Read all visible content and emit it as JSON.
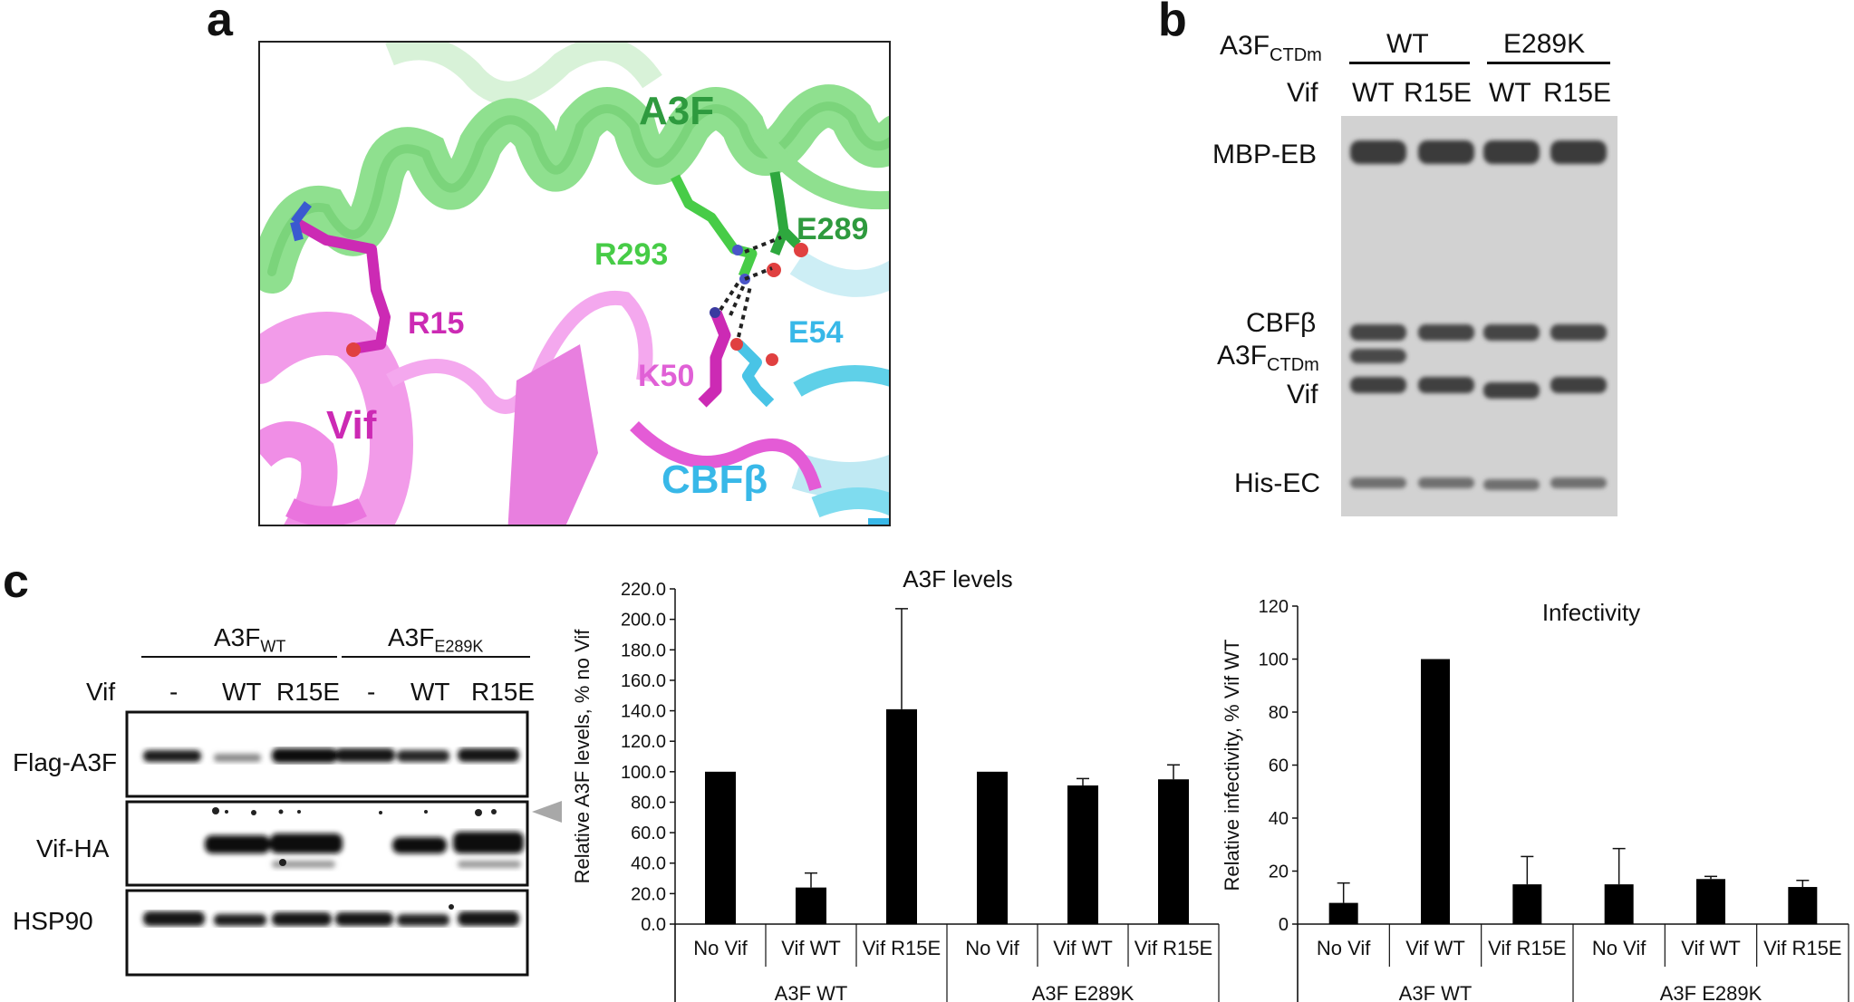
{
  "panels": {
    "a": {
      "label": "a",
      "labels": {
        "a3f": "A3F",
        "r293": "R293",
        "e289": "E289",
        "r15": "R15",
        "e54": "E54",
        "k50": "K50",
        "vif": "Vif",
        "cbfb": "CBFβ"
      },
      "colors": {
        "a3f_green": "#2e9a3e",
        "a3f_light": "#8fe08f",
        "vif_magenta": "#cc2ab4",
        "vif_light": "#f08ee6",
        "cbfb_cyan": "#38b8e8",
        "r293_green": "#47cc47"
      }
    },
    "b": {
      "label": "b",
      "row1_prefix": "A3F",
      "row1_sub": "CTDm",
      "group1": "WT",
      "group2": "E289K",
      "row2_prefix": "Vif",
      "lanes": [
        "WT",
        "R15E",
        "WT",
        "R15E"
      ],
      "bands": {
        "mbp": "MBP-EB",
        "cbfb": "CBFβ",
        "a3f_main": "A3F",
        "a3f_sub": "CTDm",
        "vif": "Vif",
        "his": "His-EC"
      }
    },
    "c": {
      "label": "c",
      "group1_main": "A3F",
      "group1_sub": "WT",
      "group2_main": "A3F",
      "group2_sub": "E289K",
      "vif_label": "Vif",
      "lanes": [
        "-",
        "WT",
        "R15E",
        "-",
        "WT",
        "R15E"
      ],
      "blots": [
        "Flag-A3F",
        "Vif-HA",
        "HSP90"
      ]
    }
  },
  "chart_data": [
    {
      "type": "bar",
      "title": "A3F levels",
      "ylabel": "Relative A3F levels, % no Vif",
      "ylim": [
        0,
        220
      ],
      "ytick_step": 20,
      "ytick_decimals": 1,
      "categories": [
        "No Vif",
        "Vif WT",
        "Vif R15E",
        "No Vif",
        "Vif WT",
        "Vif R15E"
      ],
      "groups": [
        "A3F WT",
        "A3F E289K"
      ],
      "values": [
        100,
        24,
        141,
        100,
        91,
        95
      ],
      "errors": [
        0,
        9.5,
        66,
        0,
        4.5,
        9.5
      ],
      "bar_color": "#000000"
    },
    {
      "type": "bar",
      "title": "Infectivity",
      "ylabel": "Relative infectivity, % Vif WT",
      "ylim": [
        0,
        120
      ],
      "ytick_step": 20,
      "ytick_decimals": 0,
      "categories": [
        "No Vif",
        "Vif WT",
        "Vif R15E",
        "No Vif",
        "Vif WT",
        "Vif R15E"
      ],
      "groups": [
        "A3F WT",
        "A3F E289K"
      ],
      "values": [
        8,
        100,
        15,
        15,
        17,
        14
      ],
      "errors": [
        7.5,
        0,
        10.5,
        13.5,
        1,
        2.5
      ],
      "bar_color": "#000000"
    }
  ]
}
